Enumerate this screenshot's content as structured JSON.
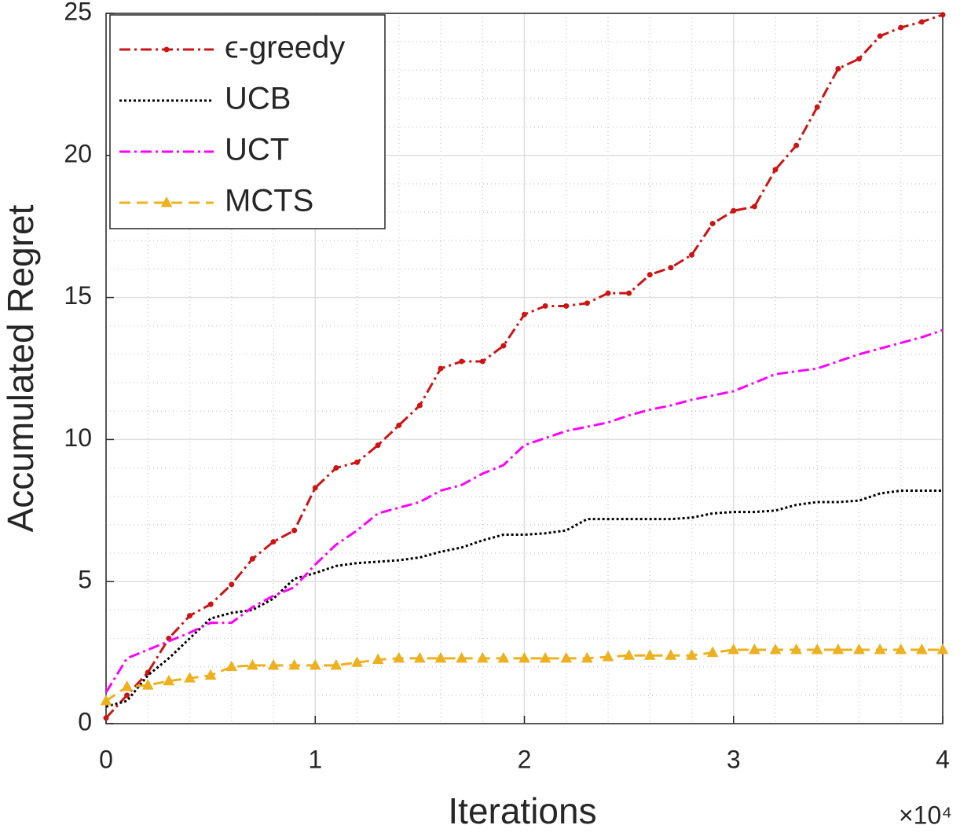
{
  "chart_data": {
    "type": "line",
    "xlabel": "Iterations",
    "ylabel": "Accumulated Regret",
    "x_multiplier": "×10⁴",
    "x": [
      0,
      0.1,
      0.2,
      0.3,
      0.4,
      0.5,
      0.6,
      0.7,
      0.8,
      0.9,
      1.0,
      1.1,
      1.2,
      1.3,
      1.4,
      1.5,
      1.6,
      1.7,
      1.8,
      1.9,
      2.0,
      2.1,
      2.2,
      2.3,
      2.4,
      2.5,
      2.6,
      2.7,
      2.8,
      2.9,
      3.0,
      3.1,
      3.2,
      3.3,
      3.4,
      3.5,
      3.6,
      3.7,
      3.8,
      3.9,
      4.0
    ],
    "series": [
      {
        "name": "ϵ-greedy",
        "color": "#cc1414",
        "dash": "14 5 3 5",
        "marker": "dot",
        "values": [
          0.2,
          1.0,
          1.8,
          3.0,
          3.8,
          4.2,
          4.9,
          5.8,
          6.4,
          6.8,
          8.3,
          9.0,
          9.2,
          9.8,
          10.5,
          11.2,
          12.5,
          12.75,
          12.75,
          13.3,
          14.4,
          14.7,
          14.7,
          14.8,
          15.15,
          15.15,
          15.8,
          16.05,
          16.5,
          17.6,
          18.05,
          18.2,
          19.5,
          20.35,
          21.7,
          23.05,
          23.4,
          24.2,
          24.5,
          24.7,
          24.95
        ]
      },
      {
        "name": "UCB",
        "color": "#000000",
        "dash": "3 3",
        "marker": "none",
        "values": [
          0.6,
          0.8,
          1.7,
          2.3,
          3.0,
          3.7,
          3.9,
          4.0,
          4.4,
          5.1,
          5.3,
          5.55,
          5.65,
          5.7,
          5.75,
          5.85,
          6.05,
          6.2,
          6.45,
          6.65,
          6.65,
          6.7,
          6.8,
          7.2,
          7.2,
          7.2,
          7.2,
          7.2,
          7.25,
          7.4,
          7.45,
          7.45,
          7.5,
          7.7,
          7.8,
          7.8,
          7.85,
          8.1,
          8.2,
          8.2,
          8.2
        ]
      },
      {
        "name": "UCT",
        "color": "#ff00ff",
        "dash": "14 5 3 5",
        "marker": "none",
        "values": [
          1.1,
          2.3,
          2.6,
          2.9,
          3.2,
          3.55,
          3.55,
          4.1,
          4.5,
          4.8,
          5.6,
          6.3,
          6.8,
          7.4,
          7.6,
          7.8,
          8.2,
          8.4,
          8.8,
          9.1,
          9.8,
          10.05,
          10.3,
          10.45,
          10.6,
          10.85,
          11.05,
          11.2,
          11.4,
          11.55,
          11.7,
          12.0,
          12.3,
          12.4,
          12.5,
          12.75,
          13.0,
          13.2,
          13.4,
          13.6,
          13.85
        ]
      },
      {
        "name": "MCTS",
        "color": "#edb120",
        "dash": "14 8",
        "marker": "triangle",
        "values": [
          0.8,
          1.3,
          1.35,
          1.5,
          1.6,
          1.7,
          2.0,
          2.05,
          2.05,
          2.05,
          2.05,
          2.05,
          2.15,
          2.25,
          2.3,
          2.3,
          2.3,
          2.3,
          2.3,
          2.3,
          2.3,
          2.3,
          2.3,
          2.3,
          2.35,
          2.4,
          2.4,
          2.4,
          2.4,
          2.5,
          2.6,
          2.6,
          2.6,
          2.6,
          2.6,
          2.6,
          2.6,
          2.6,
          2.6,
          2.6,
          2.6
        ]
      }
    ],
    "xlim": [
      0,
      4
    ],
    "xticks": [
      0,
      1,
      2,
      3,
      4
    ],
    "ylim": [
      0,
      25
    ],
    "yticks": [
      0,
      5,
      10,
      15,
      20,
      25
    ],
    "xminorticks": [
      0.2,
      0.4,
      0.6,
      0.8,
      1.2,
      1.4,
      1.6,
      1.8,
      2.2,
      2.4,
      2.6,
      2.8,
      3.2,
      3.4,
      3.6,
      3.8
    ],
    "yminorticks": [
      1,
      2,
      3,
      4,
      6,
      7,
      8,
      9,
      11,
      12,
      13,
      14,
      16,
      17,
      18,
      19,
      21,
      22,
      23,
      24
    ],
    "grid": true,
    "minor_grid": true,
    "legend": "upper left"
  }
}
